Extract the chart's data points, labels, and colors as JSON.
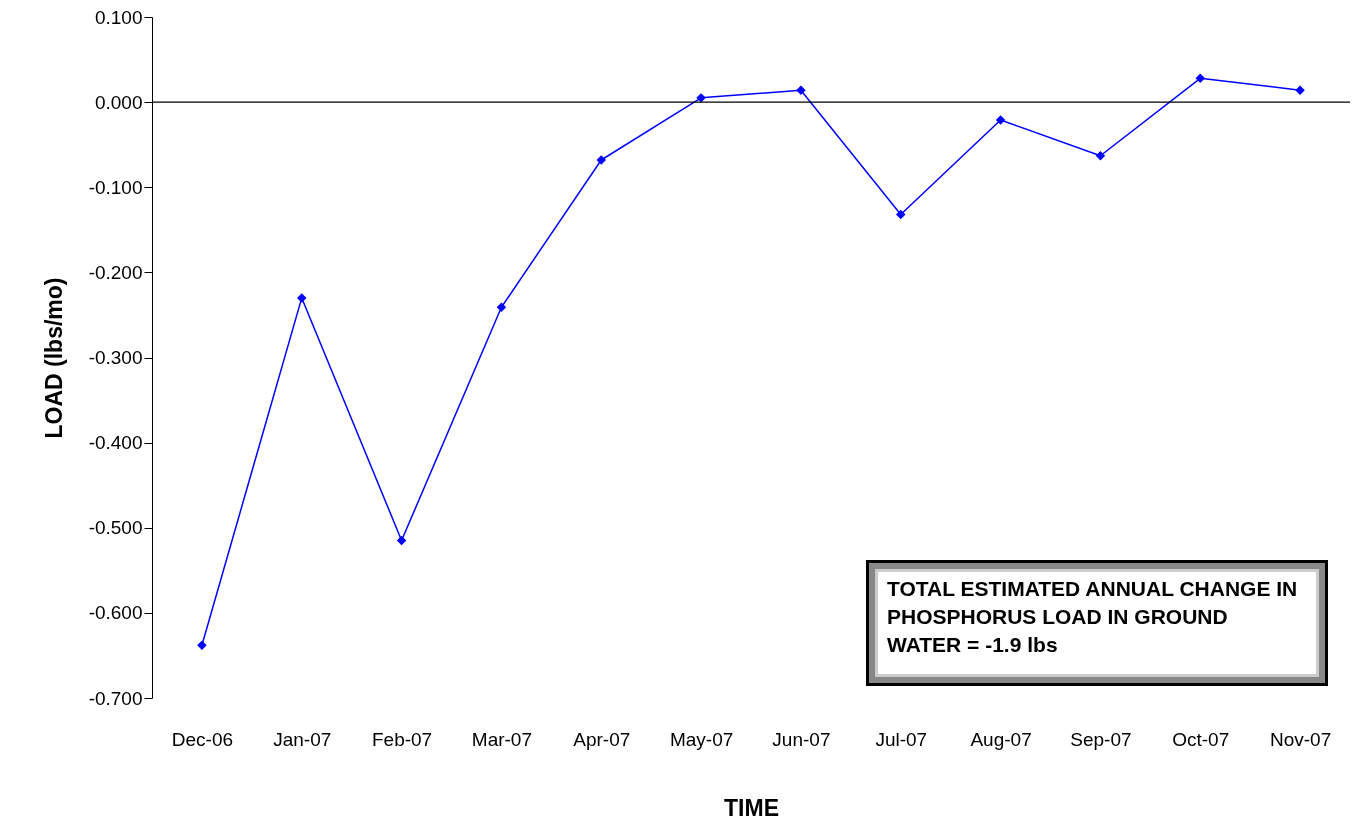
{
  "chart_data": {
    "type": "line",
    "xlabel": "TIME",
    "ylabel": "LOAD (lbs/mo)",
    "categories": [
      "Dec-06",
      "Jan-07",
      "Feb-07",
      "Mar-07",
      "Apr-07",
      "May-07",
      "Jun-07",
      "Jul-07",
      "Aug-07",
      "Sep-07",
      "Oct-07",
      "Nov-07"
    ],
    "series": [
      {
        "color": "#0000ff",
        "values": [
          -0.638,
          -0.23,
          -0.515,
          -0.241,
          -0.068,
          0.005,
          0.014,
          -0.132,
          -0.021,
          -0.063,
          0.028,
          0.014
        ]
      }
    ],
    "ylim": [
      -0.7,
      0.1
    ],
    "yticks": [
      {
        "value": -0.7,
        "label": "-0.700"
      },
      {
        "value": -0.6,
        "label": "-0.600"
      },
      {
        "value": -0.5,
        "label": "-0.500"
      },
      {
        "value": -0.4,
        "label": "-0.400"
      },
      {
        "value": -0.3,
        "label": "-0.300"
      },
      {
        "value": -0.2,
        "label": "-0.200"
      },
      {
        "value": -0.1,
        "label": "-0.100"
      },
      {
        "value": 0,
        "label": "0.000"
      },
      {
        "value": 0.1,
        "label": "0.100"
      }
    ],
    "ref_lines": [
      {
        "axis": "y",
        "value": 0,
        "color": "#000000"
      }
    ],
    "marker": "diamond",
    "line_style": "solid",
    "grid": false,
    "annotations": [
      "TOTAL ESTIMATED ANNUAL CHANGE IN PHOSPHORUS LOAD IN GROUND WATER = -1.9 lbs"
    ]
  }
}
